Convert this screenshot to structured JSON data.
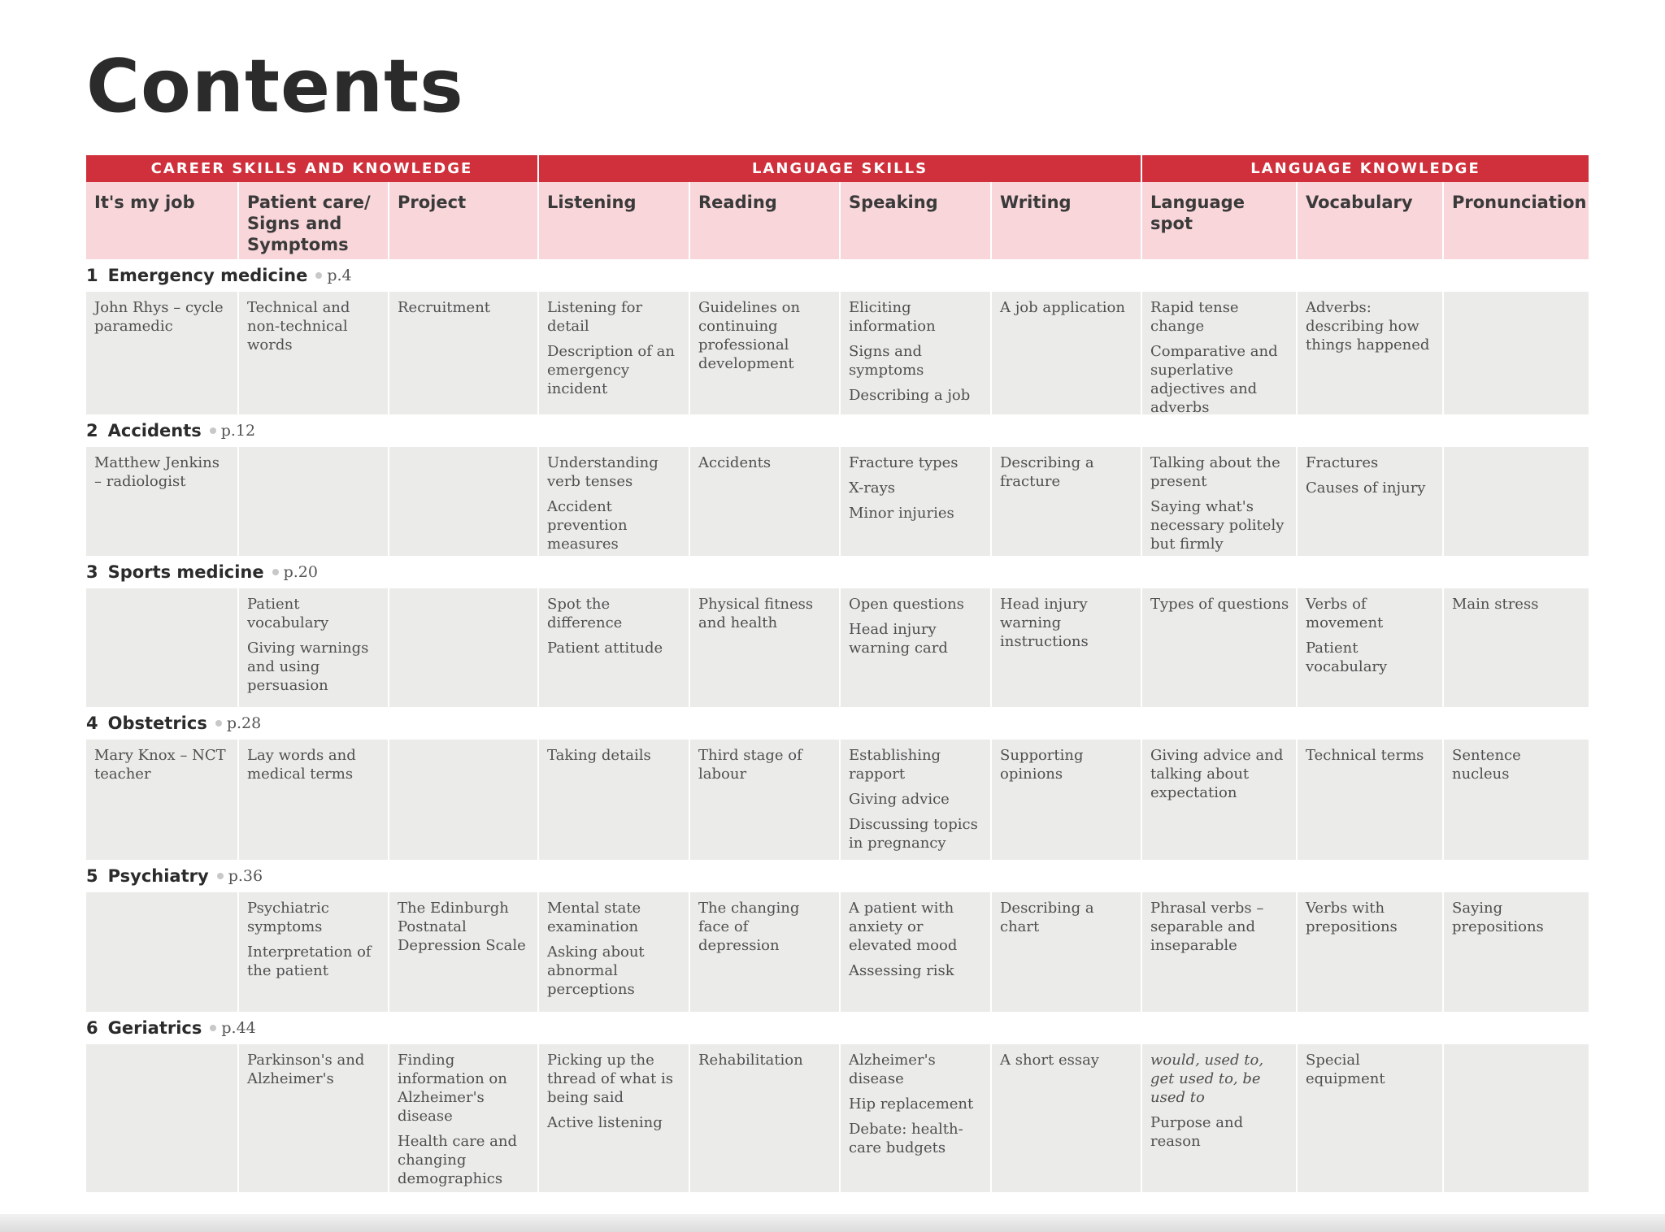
{
  "title": "Contents",
  "bands": [
    "CAREER SKILLS AND KNOWLEDGE",
    "LANGUAGE SKILLS",
    "LANGUAGE KNOWLEDGE"
  ],
  "columns": [
    "It's my job",
    "Patient care/ Signs and Symptoms",
    "Project",
    "Listening",
    "Reading",
    "Speaking",
    "Writing",
    "Language spot",
    "Vocabulary",
    "Pronunciation"
  ],
  "units": [
    {
      "num": "1",
      "name": "Emergency medicine",
      "page": "p.4",
      "cells": [
        [
          "John Rhys – cycle paramedic"
        ],
        [
          "Technical and non-technical words"
        ],
        [
          "Recruitment"
        ],
        [
          "Listening for detail",
          "Description of an emergency incident"
        ],
        [
          "Guidelines on continuing professional development"
        ],
        [
          "Eliciting information",
          "Signs and symptoms",
          "Describing a job"
        ],
        [
          "A job application"
        ],
        [
          "Rapid tense change",
          "Comparative and superlative adjectives and adverbs"
        ],
        [
          "Adverbs: describing how things happened"
        ],
        []
      ]
    },
    {
      "num": "2",
      "name": "Accidents",
      "page": "p.12",
      "cells": [
        [
          "Matthew Jenkins – radiologist"
        ],
        [],
        [],
        [
          "Understanding verb tenses",
          "Accident prevention measures"
        ],
        [
          "Accidents"
        ],
        [
          "Fracture types",
          "X-rays",
          "Minor injuries"
        ],
        [
          "Describing a fracture"
        ],
        [
          "Talking about the present",
          "Saying what's necessary politely but firmly"
        ],
        [
          "Fractures",
          "Causes of injury"
        ],
        []
      ]
    },
    {
      "num": "3",
      "name": "Sports medicine",
      "page": "p.20",
      "cells": [
        [],
        [
          "Patient vocabulary",
          "Giving warnings and using persuasion"
        ],
        [],
        [
          "Spot the difference",
          "Patient attitude"
        ],
        [
          "Physical fitness and health"
        ],
        [
          "Open questions",
          "Head injury warning card"
        ],
        [
          "Head injury warning instructions"
        ],
        [
          "Types of questions"
        ],
        [
          "Verbs of movement",
          "Patient vocabulary"
        ],
        [
          "Main stress"
        ]
      ]
    },
    {
      "num": "4",
      "name": "Obstetrics",
      "page": "p.28",
      "cells": [
        [
          "Mary Knox – NCT teacher"
        ],
        [
          "Lay words and medical terms"
        ],
        [],
        [
          "Taking details"
        ],
        [
          "Third stage of labour"
        ],
        [
          "Establishing rapport",
          "Giving advice",
          "Discussing topics in pregnancy"
        ],
        [
          "Supporting opinions"
        ],
        [
          "Giving advice and talking about expectation"
        ],
        [
          "Technical terms"
        ],
        [
          "Sentence nucleus"
        ]
      ]
    },
    {
      "num": "5",
      "name": "Psychiatry",
      "page": "p.36",
      "cells": [
        [],
        [
          "Psychiatric symptoms",
          "Interpretation of the patient"
        ],
        [
          "The Edinburgh Postnatal Depression Scale"
        ],
        [
          "Mental state examination",
          "Asking about abnormal perceptions"
        ],
        [
          "The changing face of depression"
        ],
        [
          "A patient with anxiety or elevated mood",
          "Assessing risk"
        ],
        [
          "Describing a chart"
        ],
        [
          "Phrasal verbs – separable and inseparable"
        ],
        [
          "Verbs with prepositions"
        ],
        [
          "Saying prepositions"
        ]
      ]
    },
    {
      "num": "6",
      "name": "Geriatrics",
      "page": "p.44",
      "cells": [
        [],
        [
          "Parkinson's and Alzheimer's"
        ],
        [
          "Finding information on Alzheimer's disease",
          "Health care and changing demographics"
        ],
        [
          "Picking up the thread of what is being said",
          "Active listening"
        ],
        [
          "Rehabilitation"
        ],
        [
          "Alzheimer's disease",
          "Hip replacement",
          "Debate: health-care budgets"
        ],
        [
          "A short essay"
        ],
        [
          "would, used to, get used to, be used to",
          "Purpose and reason"
        ],
        [
          "Special equipment"
        ],
        []
      ]
    }
  ]
}
